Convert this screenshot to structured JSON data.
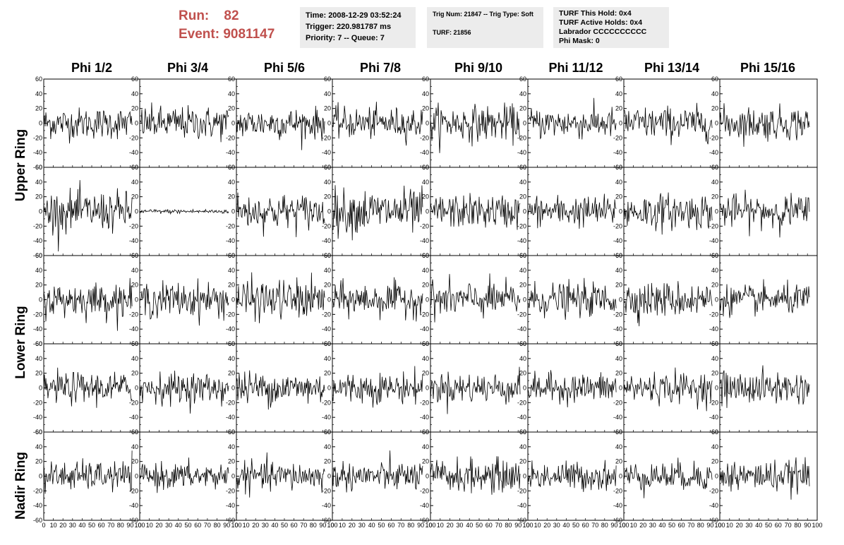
{
  "header": {
    "run_label": "Run:",
    "run_value": "82",
    "event_label": "Event:",
    "event_value": "9081147",
    "time": "Time: 2008-12-29 03:52:24",
    "trigger": "Trigger: 220.981787 ms",
    "priority_queue": "Priority: 7 -- Queue: 7",
    "trig_num_type": "Trig Num: 21847 -- Trig Type: Soft",
    "turf": "TURF: 21856",
    "turf_this_hold": "TURF This Hold: 0x4",
    "turf_active_holds": "TURF Active Holds: 0x4",
    "labrador": "Labrador CCCCCCCCCC",
    "phi_mask": "Phi Mask: 0"
  },
  "phi_headers": [
    "Phi 1/2",
    "Phi 3/4",
    "Phi 5/6",
    "Phi 7/8",
    "Phi 9/10",
    "Phi 11/12",
    "Phi 13/14",
    "Phi 15/16"
  ],
  "ring_labels": {
    "upper": "Upper Ring",
    "lower": "Lower Ring",
    "nadir": "Nadir Ring"
  },
  "chart_data": {
    "type": "line",
    "layout": "grid 5 rows x 8 columns of waveform panels",
    "xlim": [
      0,
      100
    ],
    "ylim": [
      -60,
      60
    ],
    "y_ticks": [
      -60,
      -40,
      -20,
      0,
      20,
      40,
      60
    ],
    "x_ticks": [
      0,
      10,
      20,
      30,
      40,
      50,
      60,
      70,
      80,
      90,
      100
    ],
    "line_color": "#000000",
    "samples_per_trace": 128,
    "trace_x_end": 92,
    "row_amplitudes": [
      [
        14,
        15,
        14,
        14,
        16,
        14,
        15,
        15
      ],
      [
        18,
        2,
        16,
        20,
        15,
        14,
        16,
        15
      ],
      [
        15,
        16,
        18,
        15,
        16,
        15,
        16,
        13
      ],
      [
        14,
        14,
        15,
        14,
        14,
        13,
        14,
        15
      ],
      [
        13,
        12,
        13,
        13,
        15,
        13,
        13,
        14
      ]
    ],
    "note_values": "traces are noise-like waveforms; amplitude (approx. std, ADC units) per panel listed in row_amplitudes"
  }
}
